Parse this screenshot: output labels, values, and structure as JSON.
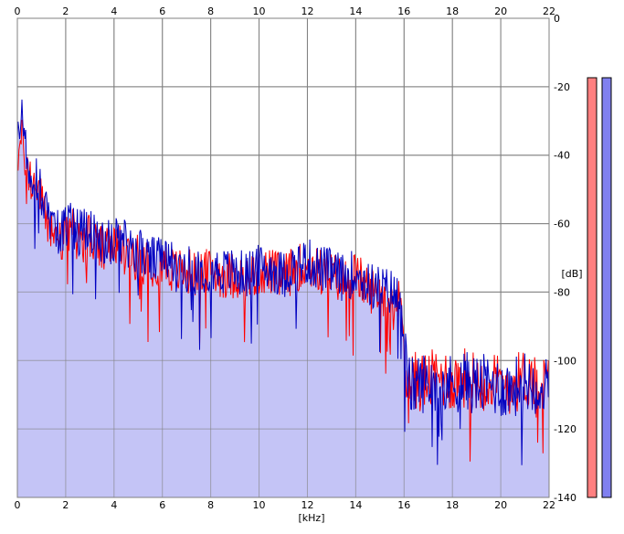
{
  "chart_data": {
    "type": "area",
    "xlabel": "[kHz]",
    "ylabel": "[dB]",
    "xlim": [
      0,
      22
    ],
    "ylim": [
      -140,
      0
    ],
    "x_ticks": [
      0,
      2,
      4,
      6,
      8,
      10,
      12,
      14,
      16,
      18,
      20,
      22
    ],
    "x_tick_labels": [
      "0",
      "2",
      "4",
      "6",
      "8",
      "10",
      "12",
      "14",
      "16",
      "18",
      "20",
      "22"
    ],
    "y_ticks": [
      0,
      -20,
      -40,
      -60,
      -80,
      -100,
      -120,
      -140
    ],
    "y_tick_labels": [
      "0",
      "-20",
      "-40",
      "-60",
      "-80",
      "-100",
      "-120",
      "-140"
    ],
    "grid": true,
    "series": [
      {
        "color": "#ff0000",
        "x": [
          0,
          0.2,
          0.5,
          0.8,
          1.0,
          1.3,
          1.5,
          1.8,
          2.2,
          2.6,
          3.0,
          3.5,
          4.0,
          4.5,
          5.0,
          5.5,
          6.0,
          6.5,
          7.0,
          7.5,
          8.0,
          8.5,
          9.0,
          9.5,
          10.0,
          10.5,
          11.0,
          11.5,
          12.0,
          12.5,
          13.0,
          13.5,
          14.0,
          14.5,
          15.0,
          15.5,
          15.9,
          16.1,
          16.3,
          16.5,
          17.0,
          17.5,
          18.0,
          18.5,
          19.0,
          19.5,
          20.0,
          20.5,
          21.0,
          21.5,
          22.0
        ],
        "values": [
          -40,
          -36,
          -47,
          -49,
          -54,
          -60,
          -63,
          -65,
          -62,
          -65,
          -64,
          -68,
          -67,
          -68,
          -70,
          -72,
          -71,
          -74,
          -74,
          -75,
          -74,
          -75,
          -75,
          -76,
          -74,
          -74,
          -76,
          -73,
          -72,
          -74,
          -75,
          -77,
          -75,
          -79,
          -80,
          -81,
          -84,
          -103,
          -107,
          -106,
          -106,
          -105,
          -106,
          -105,
          -106,
          -106,
          -107,
          -107,
          -105,
          -106,
          -107
        ]
      },
      {
        "color": "#0000c0",
        "x": [
          0,
          0.2,
          0.5,
          0.8,
          1.0,
          1.3,
          1.5,
          1.8,
          2.2,
          2.6,
          3.0,
          3.5,
          4.0,
          4.5,
          5.0,
          5.5,
          6.0,
          6.5,
          7.0,
          7.5,
          8.0,
          8.5,
          9.0,
          9.5,
          10.0,
          10.5,
          11.0,
          11.5,
          12.0,
          12.5,
          13.0,
          13.5,
          14.0,
          14.5,
          15.0,
          15.5,
          15.9,
          16.1,
          16.3,
          16.5,
          17.0,
          17.5,
          18.0,
          18.5,
          19.0,
          19.5,
          20.0,
          20.5,
          21.0,
          21.5,
          22.0
        ],
        "values": [
          -35,
          -30,
          -44,
          -47,
          -52,
          -58,
          -61,
          -63,
          -60,
          -63,
          -61,
          -66,
          -65,
          -66,
          -68,
          -71,
          -70,
          -73,
          -73,
          -74,
          -73,
          -74,
          -74,
          -75,
          -73,
          -73,
          -75,
          -72,
          -71,
          -73,
          -74,
          -76,
          -74,
          -78,
          -79,
          -80,
          -83,
          -104,
          -108,
          -107,
          -106,
          -106,
          -107,
          -106,
          -107,
          -107,
          -108,
          -108,
          -106,
          -107,
          -108
        ]
      }
    ],
    "fill_color": "#c4c4f6",
    "line_colors": [
      "#ff0000",
      "#0000c0"
    ],
    "meters": [
      {
        "color": "#ff8080"
      },
      {
        "color": "#8080f0"
      }
    ]
  }
}
